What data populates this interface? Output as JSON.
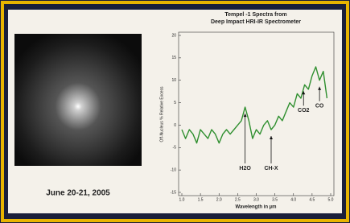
{
  "caption": "June 20-21, 2005",
  "chart_data": {
    "type": "line",
    "title": [
      "Tempel -1 Spectra from",
      "Deep Impact HRI-IR Spectrometer"
    ],
    "x_label": "Wavelength in µm",
    "y_label": "Off-Nucleus % Relative Excess",
    "x": [
      1.0,
      1.1,
      1.2,
      1.3,
      1.4,
      1.5,
      1.6,
      1.7,
      1.8,
      1.9,
      2.0,
      2.1,
      2.2,
      2.3,
      2.4,
      2.5,
      2.6,
      2.7,
      2.8,
      2.9,
      3.0,
      3.1,
      3.2,
      3.3,
      3.4,
      3.5,
      3.6,
      3.7,
      3.8,
      3.9,
      4.0,
      4.1,
      4.2,
      4.3,
      4.4,
      4.5,
      4.6,
      4.7,
      4.8,
      4.9
    ],
    "series": [
      {
        "color": "#2f8f2f",
        "values": [
          -1,
          -3,
          -1,
          -2,
          -4,
          -1,
          -2,
          -3,
          -1,
          -2,
          -4,
          -2,
          -1,
          -2,
          -1,
          0,
          1,
          4,
          1,
          -3,
          -1,
          -2,
          0,
          1,
          -1,
          0,
          2,
          1,
          3,
          5,
          4,
          7,
          6,
          9,
          8,
          11,
          13,
          10,
          12,
          6
        ]
      }
    ],
    "xlim": [
      1.0,
      5.0
    ],
    "xticks": [
      {
        "value": 1.0,
        "label": "1.0"
      },
      {
        "value": 1.5,
        "label": "1.5"
      },
      {
        "value": 2.0,
        "label": "2.0"
      },
      {
        "value": 2.5,
        "label": "2.5"
      },
      {
        "value": 3.0,
        "label": "3.0"
      },
      {
        "value": 3.5,
        "label": "3.5"
      },
      {
        "value": 4.0,
        "label": "4.0"
      },
      {
        "value": 4.5,
        "label": "4.5"
      },
      {
        "value": 5.0,
        "label": "5.0"
      }
    ],
    "ylim": [
      -15,
      20
    ],
    "yticks": [
      -15,
      -10,
      -5,
      0,
      5,
      10,
      15,
      20
    ],
    "annotations": [
      {
        "label": "H2O",
        "x": 2.7
      },
      {
        "label": "CH-X",
        "x": 3.4
      },
      {
        "label": "CO2",
        "x": 4.27
      },
      {
        "label": "CO",
        "x": 4.7
      }
    ]
  }
}
